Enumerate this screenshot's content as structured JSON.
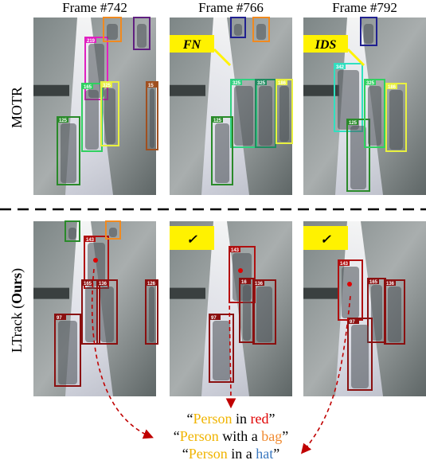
{
  "frames": [
    "Frame #742",
    "Frame #766",
    "Frame #792"
  ],
  "rows": [
    {
      "label": [
        "MOTR"
      ],
      "panels": [
        {
          "boxes": [
            "219",
            "125",
            "165",
            "325",
            "",
            "",
            "15"
          ]
        },
        {
          "badge": "FN",
          "boxes": [
            "325",
            "325",
            "186",
            "125",
            "",
            ""
          ]
        },
        {
          "badge": "IDS",
          "boxes": [
            "342",
            "125",
            "",
            "186",
            "325"
          ]
        }
      ]
    },
    {
      "label": [
        "LTrack (",
        "Ours",
        ")"
      ],
      "panels": [
        {
          "boxes": [
            "143",
            "165",
            "136",
            "97",
            "126",
            "",
            ""
          ]
        },
        {
          "badge": "✓",
          "boxes": [
            "143",
            "16",
            "136",
            "97"
          ]
        },
        {
          "badge": "✓",
          "boxes": [
            "143",
            "165",
            "136",
            "97"
          ]
        }
      ]
    }
  ],
  "captions": [
    [
      "“",
      "Person",
      " in ",
      "red",
      "”"
    ],
    [
      "“",
      "Person",
      " with a ",
      "bag",
      "”"
    ],
    [
      "“",
      "Person",
      " in a ",
      "hat",
      "”"
    ]
  ]
}
